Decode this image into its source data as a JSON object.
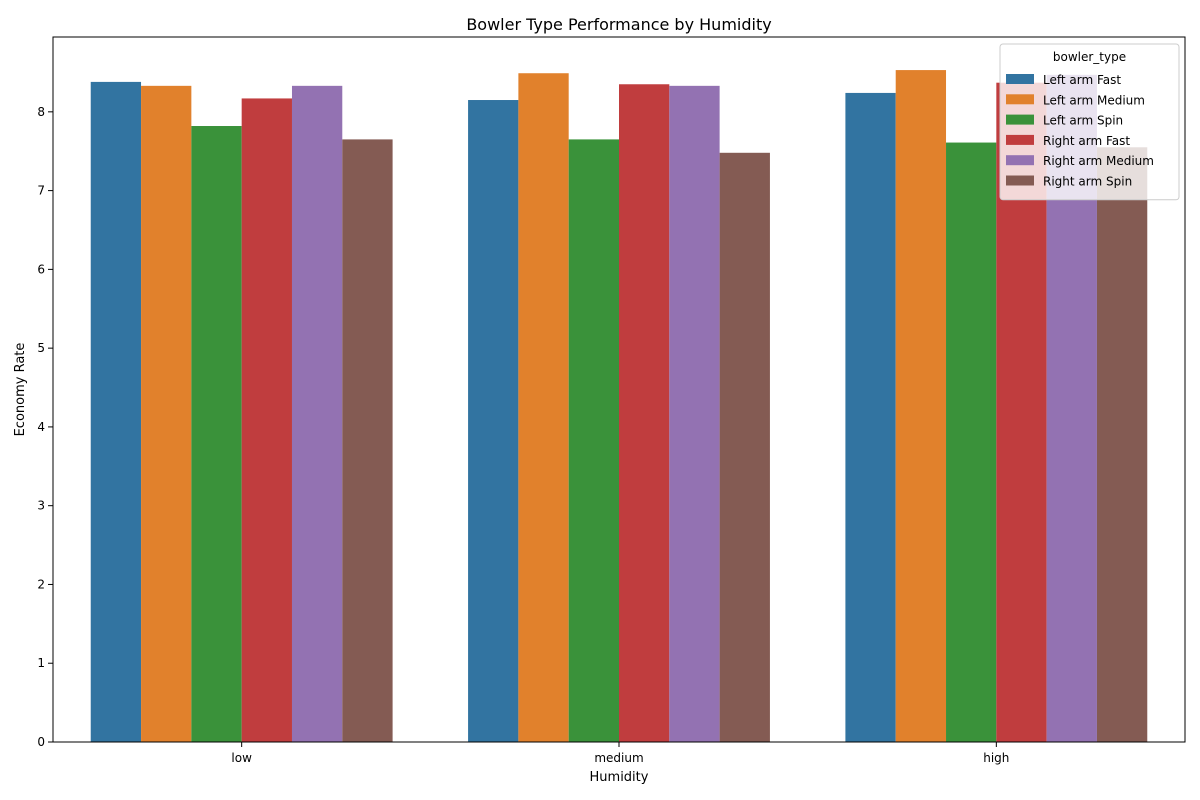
{
  "chart_data": {
    "type": "bar",
    "title": "Bowler Type Performance by Humidity",
    "xlabel": "Humidity",
    "ylabel": "Economy Rate",
    "categories": [
      "low",
      "medium",
      "high"
    ],
    "ylim": [
      0,
      8.95
    ],
    "yticks": [
      "0",
      "1",
      "2",
      "3",
      "4",
      "5",
      "6",
      "7",
      "8"
    ],
    "grid": false,
    "legend": {
      "title": "bowler_type",
      "position": "top-right"
    },
    "series": [
      {
        "name": "Left arm Fast",
        "color": "#3274a1",
        "values": [
          8.38,
          8.15,
          8.24
        ]
      },
      {
        "name": "Left arm Medium",
        "color": "#e1812c",
        "values": [
          8.33,
          8.49,
          8.53
        ]
      },
      {
        "name": "Left arm Spin",
        "color": "#3a923a",
        "values": [
          7.82,
          7.65,
          7.61
        ]
      },
      {
        "name": "Right arm Fast",
        "color": "#c03d3e",
        "values": [
          8.17,
          8.35,
          8.37
        ]
      },
      {
        "name": "Right arm Medium",
        "color": "#9372b2",
        "values": [
          8.33,
          8.33,
          8.47
        ]
      },
      {
        "name": "Right arm Spin",
        "color": "#845b53",
        "values": [
          7.65,
          7.48,
          7.55
        ]
      }
    ]
  }
}
